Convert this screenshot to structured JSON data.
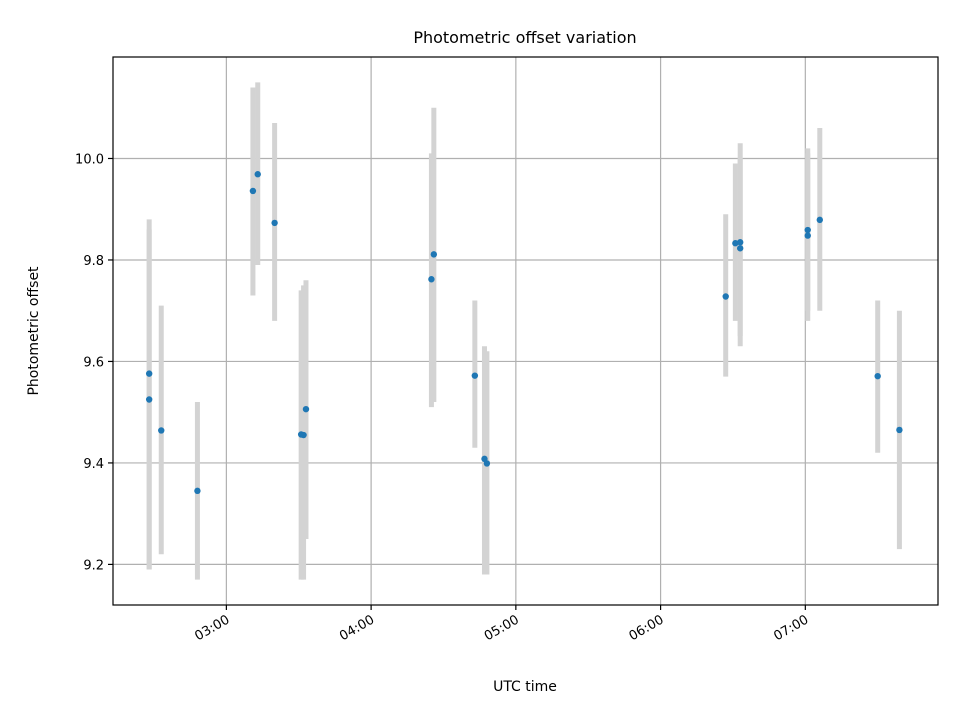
{
  "chart_data": {
    "type": "scatter",
    "title": "Photometric offset variation",
    "xlabel": "UTC time",
    "ylabel": "Photometric offset",
    "xlim": [
      "02:13",
      "07:55"
    ],
    "ylim": [
      9.12,
      10.2
    ],
    "x_ticks": [
      "03:00",
      "04:00",
      "05:00",
      "06:00",
      "07:00"
    ],
    "y_ticks": [
      9.2,
      9.4,
      9.6,
      9.8,
      10.0
    ],
    "grid": true,
    "colors": {
      "point": "#1f77b4",
      "errorbar": "#d3d3d3",
      "grid": "#b0b0b0"
    },
    "points": [
      {
        "x": "02:28",
        "y": 9.576,
        "err_low": 9.19,
        "err_high": 9.88
      },
      {
        "x": "02:28",
        "y": 9.525,
        "err_low": 9.19,
        "err_high": 9.86
      },
      {
        "x": "02:33",
        "y": 9.464,
        "err_low": 9.22,
        "err_high": 9.71
      },
      {
        "x": "02:48",
        "y": 9.345,
        "err_low": 9.17,
        "err_high": 9.52
      },
      {
        "x": "03:11",
        "y": 9.936,
        "err_low": 9.73,
        "err_high": 10.14
      },
      {
        "x": "03:13",
        "y": 9.969,
        "err_low": 9.79,
        "err_high": 10.15
      },
      {
        "x": "03:20",
        "y": 9.873,
        "err_low": 9.68,
        "err_high": 10.07
      },
      {
        "x": "03:31",
        "y": 9.456,
        "err_low": 9.17,
        "err_high": 9.74
      },
      {
        "x": "03:32",
        "y": 9.455,
        "err_low": 9.17,
        "err_high": 9.75
      },
      {
        "x": "03:33",
        "y": 9.506,
        "err_low": 9.25,
        "err_high": 9.76
      },
      {
        "x": "04:25",
        "y": 9.762,
        "err_low": 9.51,
        "err_high": 10.01
      },
      {
        "x": "04:26",
        "y": 9.811,
        "err_low": 9.52,
        "err_high": 10.1
      },
      {
        "x": "04:43",
        "y": 9.572,
        "err_low": 9.43,
        "err_high": 9.72
      },
      {
        "x": "04:47",
        "y": 9.408,
        "err_low": 9.18,
        "err_high": 9.63
      },
      {
        "x": "04:48",
        "y": 9.399,
        "err_low": 9.18,
        "err_high": 9.62
      },
      {
        "x": "06:27",
        "y": 9.728,
        "err_low": 9.57,
        "err_high": 9.89
      },
      {
        "x": "06:31",
        "y": 9.833,
        "err_low": 9.68,
        "err_high": 9.99
      },
      {
        "x": "06:33",
        "y": 9.823,
        "err_low": 9.65,
        "err_high": 10.0
      },
      {
        "x": "06:33",
        "y": 9.835,
        "err_low": 9.63,
        "err_high": 10.03
      },
      {
        "x": "07:01",
        "y": 9.859,
        "err_low": 9.7,
        "err_high": 10.02
      },
      {
        "x": "07:01",
        "y": 9.848,
        "err_low": 9.68,
        "err_high": 10.01
      },
      {
        "x": "07:06",
        "y": 9.879,
        "err_low": 9.7,
        "err_high": 10.06
      },
      {
        "x": "07:30",
        "y": 9.571,
        "err_low": 9.42,
        "err_high": 9.72
      },
      {
        "x": "07:39",
        "y": 9.465,
        "err_low": 9.23,
        "err_high": 9.7
      }
    ]
  }
}
